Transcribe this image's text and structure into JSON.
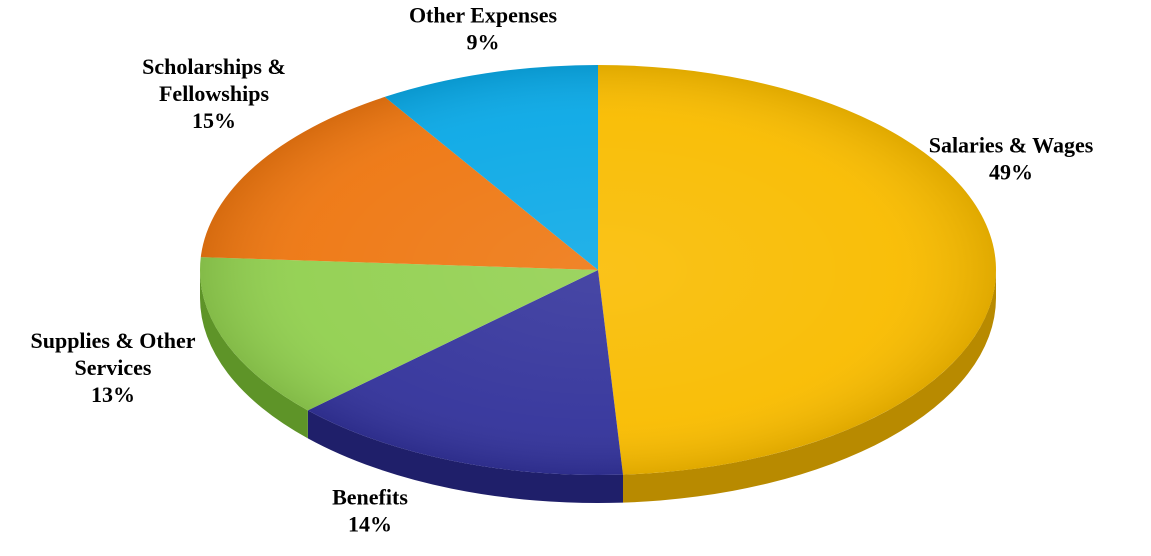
{
  "chart_data": {
    "type": "pie",
    "title": "",
    "start_category": "Salaries & Wages",
    "direction": "clockwise",
    "three_d": true,
    "slices": [
      {
        "name": "Salaries & Wages",
        "label_lines": [
          "Salaries & Wages"
        ],
        "value": 49,
        "percent_label": "49%",
        "color": "#F9BC00",
        "side_color": "#B88A00"
      },
      {
        "name": "Benefits",
        "label_lines": [
          "Benefits"
        ],
        "value": 14,
        "percent_label": "14%",
        "color": "#33339B",
        "side_color": "#1F1F6A"
      },
      {
        "name": "Supplies & Other Services",
        "label_lines": [
          "Supplies & Other",
          "Services"
        ],
        "value": 13,
        "percent_label": "13%",
        "color": "#92D050",
        "side_color": "#5E9428"
      },
      {
        "name": "Scholarships & Fellowships",
        "label_lines": [
          "Scholarships &",
          "Fellowships"
        ],
        "value": 15,
        "percent_label": "15%",
        "color": "#EE7711",
        "side_color": "#A94F06"
      },
      {
        "name": "Other Expenses",
        "label_lines": [
          "Other Expenses"
        ],
        "value": 9,
        "percent_label": "9%",
        "color": "#0BA9E6",
        "side_color": "#0777A3"
      }
    ]
  }
}
